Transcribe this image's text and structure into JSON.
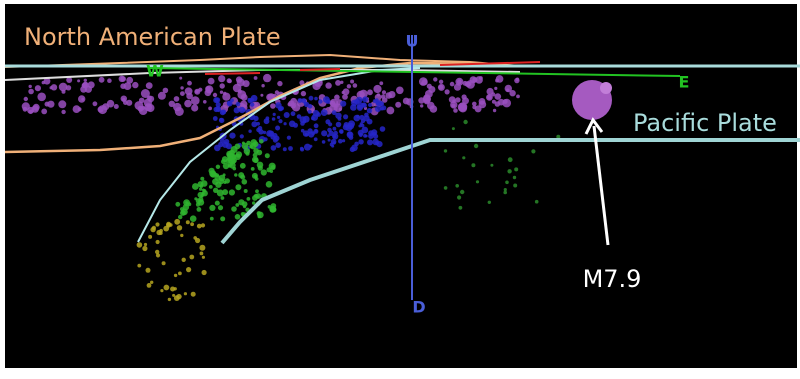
{
  "labels": {
    "north_plate": "North American Plate",
    "pacific_plate": "Pacific Plate",
    "up": "U",
    "down": "D",
    "west": "W",
    "east": "E",
    "event": "M7.9"
  }
}
